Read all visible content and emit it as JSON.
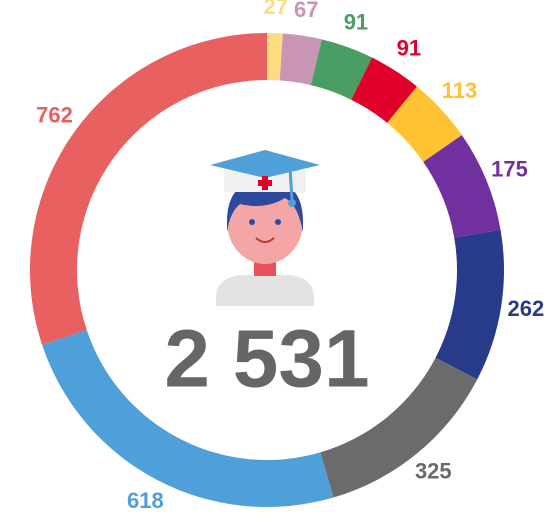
{
  "chart_data": {
    "type": "donut",
    "values": [
      27,
      67,
      91,
      91,
      113,
      175,
      262,
      325,
      618,
      762
    ],
    "colors": [
      "#fddc7f",
      "#c895b5",
      "#4a9e63",
      "#e0002a",
      "#ffc233",
      "#7030a0",
      "#283a8a",
      "#6b6b6b",
      "#4f9fd8",
      "#e96060"
    ],
    "center_label": "2 531"
  }
}
